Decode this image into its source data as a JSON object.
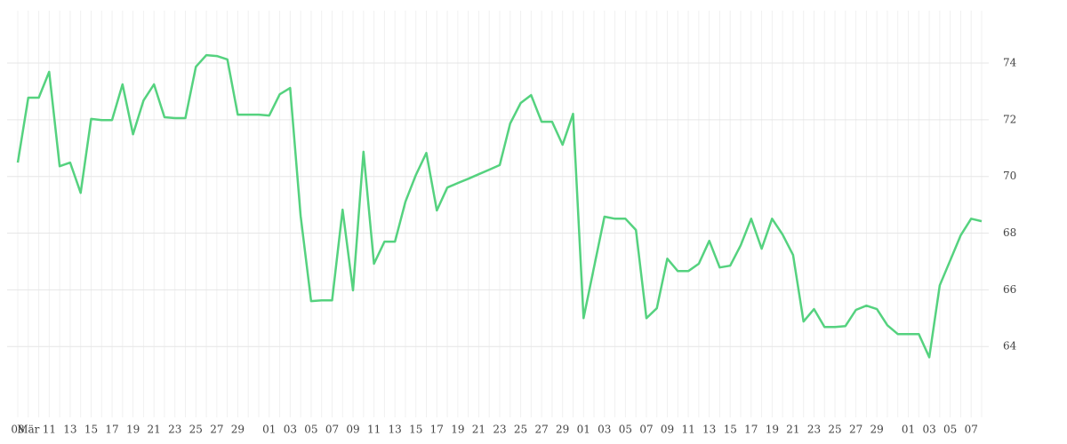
{
  "chart_data": {
    "type": "line",
    "categories": [
      "08",
      "Mär",
      null,
      "11",
      null,
      "13",
      null,
      "15",
      null,
      "17",
      null,
      "19",
      null,
      "21",
      null,
      "23",
      null,
      "25",
      null,
      "27",
      null,
      "29",
      null,
      null,
      "01",
      null,
      "03",
      null,
      "05",
      null,
      "07",
      null,
      "09",
      null,
      "11",
      null,
      "13",
      null,
      "15",
      null,
      "17",
      null,
      "19",
      null,
      "21",
      null,
      "23",
      null,
      "25",
      null,
      "27",
      null,
      "29",
      null,
      "01",
      null,
      "03",
      null,
      "05",
      null,
      "07",
      null,
      "09",
      null,
      "11",
      null,
      "13",
      null,
      "15",
      null,
      "17",
      null,
      "19",
      null,
      "21",
      null,
      "23",
      null,
      "25",
      null,
      "27",
      null,
      "29",
      null,
      null,
      "01",
      null,
      "03",
      null,
      "05",
      null,
      "07",
      null
    ],
    "series": [
      {
        "color": "#55d27f",
        "values": [
          70.49,
          72.78,
          72.78,
          73.69,
          70.36,
          70.49,
          69.42,
          72.03,
          71.99,
          71.99,
          73.25,
          71.49,
          72.68,
          73.25,
          72.09,
          72.06,
          72.06,
          73.87,
          74.28,
          74.25,
          74.13,
          72.18,
          72.18,
          72.18,
          72.15,
          72.9,
          73.12,
          68.61,
          65.6,
          65.63,
          65.63,
          68.83,
          65.98,
          70.87,
          66.92,
          67.7,
          67.7,
          69.11,
          70.05,
          70.83,
          68.8,
          69.61,
          69.77,
          69.92,
          70.08,
          70.24,
          70.4,
          71.87,
          72.59,
          72.87,
          71.93,
          71.93,
          71.12,
          72.21,
          65.0,
          66.79,
          68.58,
          68.51,
          68.51,
          68.11,
          65.0,
          65.35,
          67.1,
          66.66,
          66.66,
          66.92,
          67.73,
          66.79,
          66.85,
          67.57,
          68.51,
          67.45,
          68.51,
          67.95,
          67.23,
          64.88,
          65.32,
          64.69,
          64.69,
          64.72,
          65.29,
          65.44,
          65.32,
          64.75,
          64.44,
          64.44,
          64.44,
          63.62,
          66.16,
          67.04,
          67.92,
          68.51,
          68.42
        ]
      }
    ],
    "ylim": [
      61.5,
      75.85
    ],
    "yticks": [
      64,
      66,
      68,
      70,
      72,
      74
    ],
    "grid": true
  }
}
